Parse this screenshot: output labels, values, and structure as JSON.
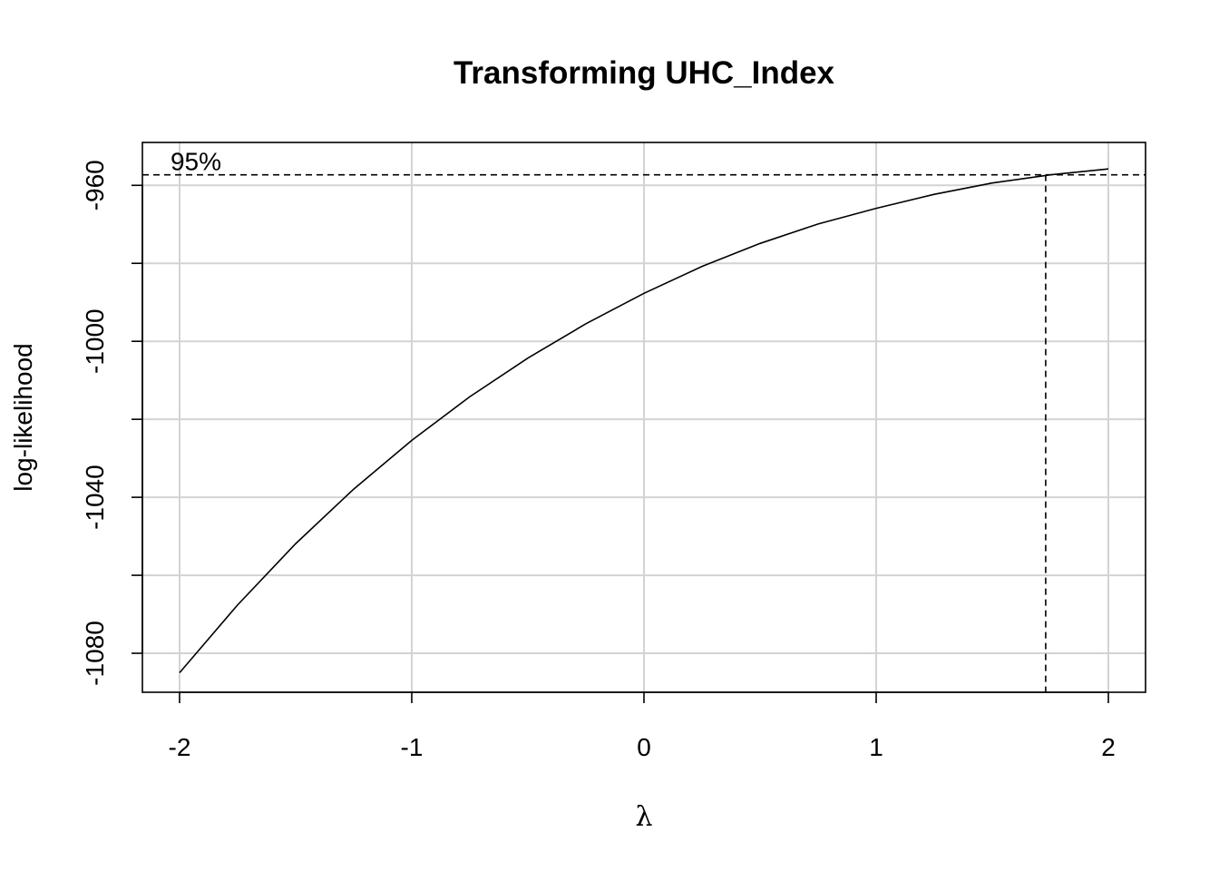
{
  "chart_data": {
    "type": "line",
    "title": "Transforming UHC_Index",
    "xlabel": "λ",
    "ylabel": "log-likelihood",
    "xlim": [
      -2.16,
      2.16
    ],
    "ylim": [
      -1090.0,
      -949.0
    ],
    "x_ticks": [
      -2,
      -1,
      0,
      1,
      2
    ],
    "x_tick_labels": [
      "-2",
      "-1",
      "0",
      "1",
      "2"
    ],
    "y_ticks": [
      -960,
      -980,
      -1000,
      -1020,
      -1040,
      -1060,
      -1080
    ],
    "y_tick_labels": [
      "-960",
      "",
      "-1000",
      "",
      "-1040",
      "",
      "-1080"
    ],
    "grid": true,
    "series": [
      {
        "x": [
          -2.0,
          -1.75,
          -1.5,
          -1.25,
          -1.0,
          -0.75,
          -0.5,
          -0.25,
          0.0,
          0.25,
          0.5,
          0.75,
          1.0,
          1.25,
          1.5,
          1.75,
          2.0
        ],
        "y": [
          -1085.0,
          -1067.6,
          -1051.9,
          -1037.9,
          -1025.4,
          -1014.2,
          -1004.3,
          -995.5,
          -987.7,
          -980.8,
          -974.9,
          -969.9,
          -965.9,
          -962.3,
          -959.4,
          -957.3,
          -955.8
        ]
      }
    ],
    "ci_threshold": -957.3,
    "ci_label": "95%",
    "ci_bounds": [
      1.73
    ]
  }
}
